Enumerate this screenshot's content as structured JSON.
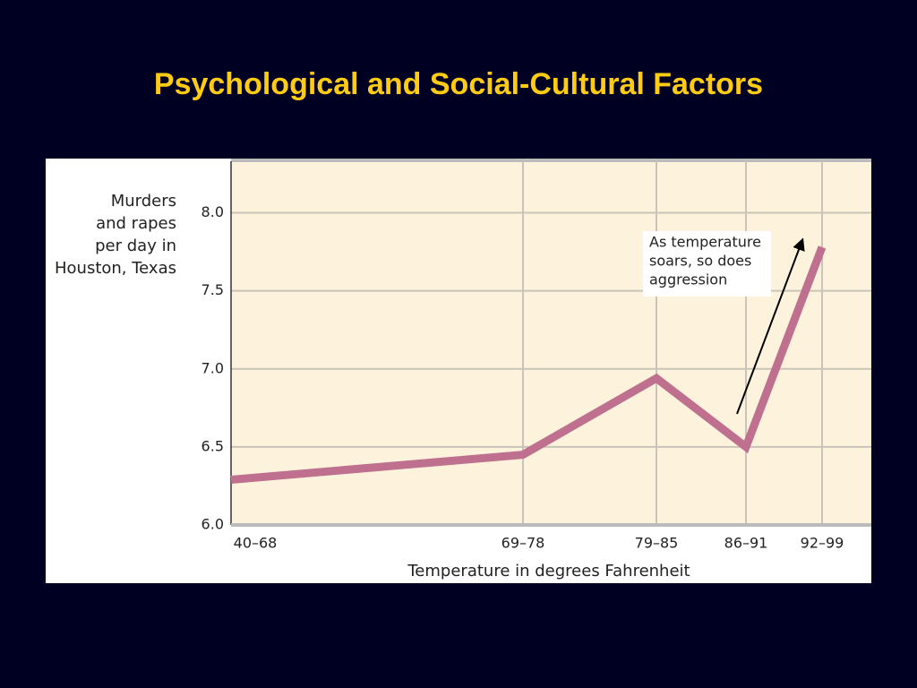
{
  "slide_title": "Psychological and Social-Cultural Factors",
  "chart_data": {
    "type": "line",
    "ylabel": [
      "Murders",
      "and rapes",
      "per day in",
      "Houston, Texas"
    ],
    "xlabel": "Temperature in degrees Fahrenheit",
    "categories": [
      "40–68",
      "69–78",
      "79–85",
      "86–91",
      "92–99"
    ],
    "series": [
      {
        "name": "Murders and rapes per day",
        "color": "#c0708f",
        "values": [
          6.29,
          6.45,
          6.94,
          6.5,
          7.78
        ]
      }
    ],
    "ylim": [
      6.0,
      8.33
    ],
    "yticks": [
      {
        "value": 6,
        "label": "6.0"
      },
      6.5,
      {
        "value": 7,
        "label": "7.0"
      },
      7.5,
      {
        "value": 8,
        "label": "8.0"
      }
    ],
    "grid": true,
    "annotation": [
      "As temperature",
      "soars, so does",
      "aggression"
    ]
  }
}
